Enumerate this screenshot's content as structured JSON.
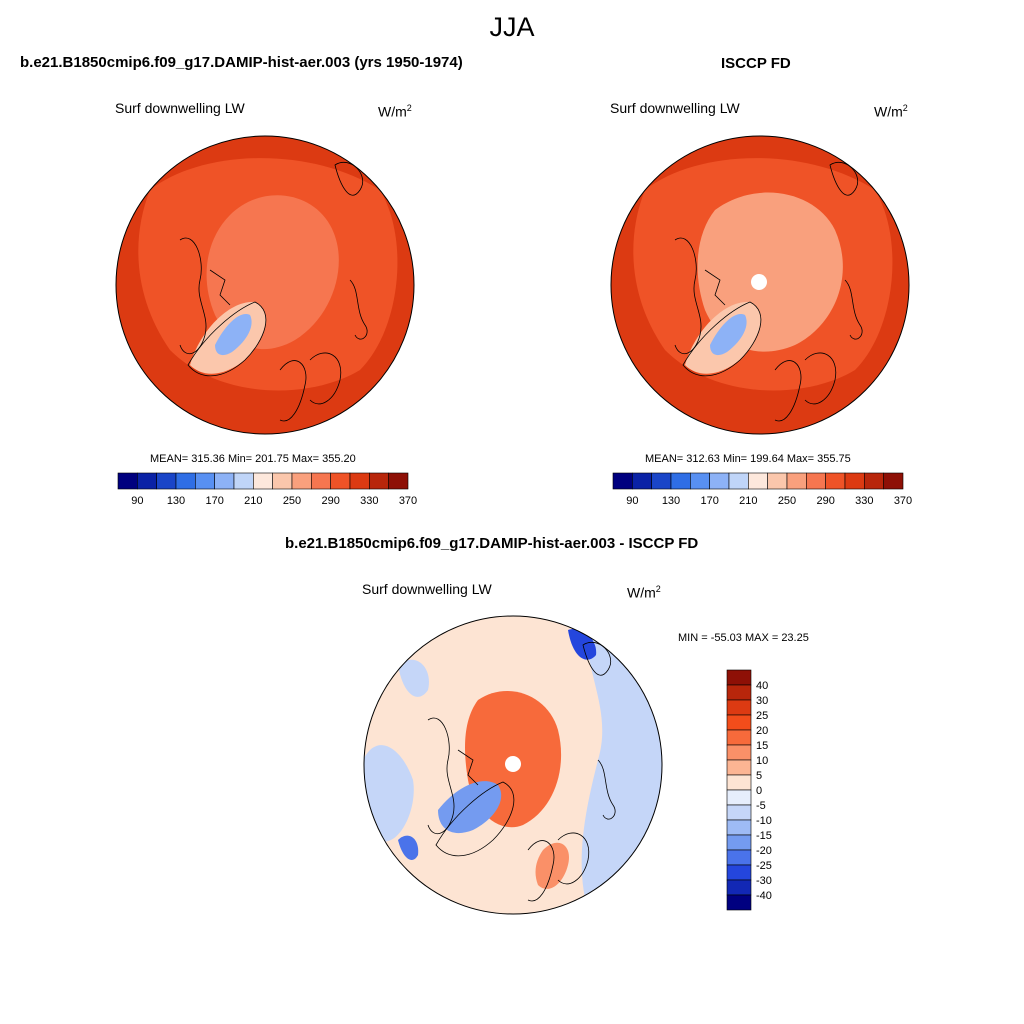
{
  "figure": {
    "season": "JJA",
    "panels": [
      {
        "id": "model",
        "title": "b.e21.B1850cmip6.f09_g17.DAMIP-hist-aer.003 (yrs 1950-1974)",
        "variable": "Surf downwelling LW",
        "units": "W/m",
        "units_superscript": "2",
        "stats": "MEAN= 315.36  Min= 201.75  Max= 355.20"
      },
      {
        "id": "obs",
        "title": "ISCCP FD",
        "variable": "Surf downwelling LW",
        "units": "W/m",
        "units_superscript": "2",
        "stats": "MEAN= 312.63  Min= 199.64  Max= 355.75"
      },
      {
        "id": "diff",
        "title": "b.e21.B1850cmip6.f09_g17.DAMIP-hist-aer.003 - ISCCP FD",
        "variable": "Surf downwelling LW",
        "units": "W/m",
        "units_superscript": "2",
        "stats": "MIN = -55.03 MAX =  23.25"
      }
    ]
  },
  "colorbars": {
    "absolute": {
      "colors": [
        "#00007f",
        "#0a22a6",
        "#1a45c8",
        "#2f6ee5",
        "#5890f2",
        "#8db2f6",
        "#c0d5f8",
        "#fde8dc",
        "#fbc7ac",
        "#f9a07d",
        "#f67650",
        "#ef5327",
        "#dc3a12",
        "#b8260b",
        "#8e1006"
      ],
      "tick_labels": [
        "90",
        "130",
        "170",
        "210",
        "250",
        "290",
        "330",
        "370"
      ]
    },
    "difference": {
      "colors": [
        "#8e1006",
        "#b8260b",
        "#dc3a12",
        "#f24d1b",
        "#f76a3b",
        "#fa9068",
        "#fcb593",
        "#fde4d3",
        "#e6eefc",
        "#c5d6f8",
        "#9ebbf5",
        "#749bf0",
        "#4a73ea",
        "#2446dd",
        "#1228b5",
        "#000080"
      ],
      "tick_labels": [
        "40",
        "30",
        "25",
        "20",
        "15",
        "10",
        "5",
        "0",
        "-5",
        "-10",
        "-15",
        "-20",
        "-25",
        "-30",
        "-40"
      ]
    }
  },
  "map_colors": {
    "ocean_rim": "#dc3a12",
    "land_mid": "#ef5327",
    "arctic_fill": "#f67650",
    "arctic_obs": "#f9a07d",
    "greenland_edge": "#fbc7ac",
    "greenland_core": "#8db2f6",
    "diff_background": "#fde4d3",
    "diff_positive": "#f76a3b",
    "diff_negative": "#9ebbf5",
    "coast": "#000000"
  }
}
